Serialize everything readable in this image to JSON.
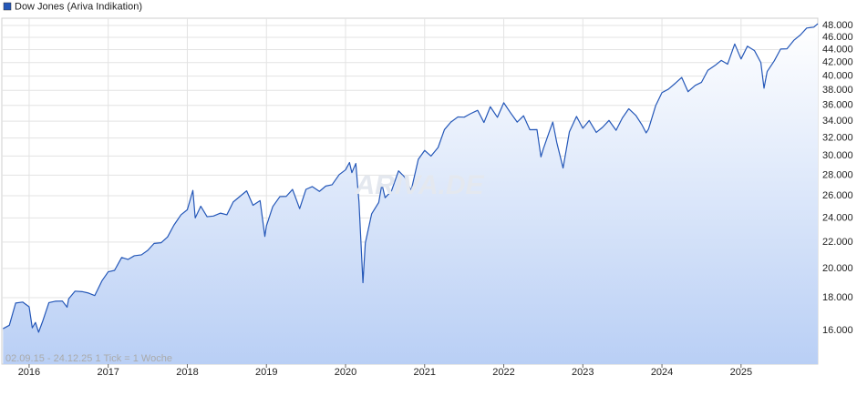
{
  "chart_data": {
    "type": "line",
    "legend_position": "top-left",
    "footer": "02.09.15 - 24.12.25   1 Tick = 1 Woche",
    "watermark": "ARIVA.DE",
    "log_scale": true,
    "grid": true,
    "x": [
      2015.67,
      2015.75,
      2015.83,
      2015.92,
      2016.0,
      2016.04,
      2016.08,
      2016.12,
      2016.17,
      2016.25,
      2016.33,
      2016.42,
      2016.48,
      2016.5,
      2016.58,
      2016.67,
      2016.75,
      2016.83,
      2016.92,
      2017.0,
      2017.08,
      2017.17,
      2017.25,
      2017.33,
      2017.42,
      2017.5,
      2017.58,
      2017.67,
      2017.75,
      2017.83,
      2017.92,
      2018.0,
      2018.07,
      2018.1,
      2018.17,
      2018.25,
      2018.33,
      2018.42,
      2018.5,
      2018.58,
      2018.67,
      2018.75,
      2018.83,
      2018.92,
      2018.98,
      2019.0,
      2019.08,
      2019.17,
      2019.25,
      2019.33,
      2019.42,
      2019.5,
      2019.58,
      2019.67,
      2019.75,
      2019.83,
      2019.92,
      2020.0,
      2020.05,
      2020.08,
      2020.13,
      2020.17,
      2020.22,
      2020.25,
      2020.33,
      2020.42,
      2020.46,
      2020.5,
      2020.58,
      2020.67,
      2020.75,
      2020.83,
      2020.92,
      2021.0,
      2021.08,
      2021.17,
      2021.25,
      2021.33,
      2021.42,
      2021.5,
      2021.58,
      2021.67,
      2021.75,
      2021.83,
      2021.92,
      2022.0,
      2022.08,
      2022.17,
      2022.25,
      2022.33,
      2022.42,
      2022.47,
      2022.5,
      2022.58,
      2022.62,
      2022.67,
      2022.75,
      2022.83,
      2022.92,
      2023.0,
      2023.08,
      2023.17,
      2023.25,
      2023.33,
      2023.42,
      2023.5,
      2023.58,
      2023.67,
      2023.75,
      2023.8,
      2023.83,
      2023.92,
      2024.0,
      2024.08,
      2024.17,
      2024.25,
      2024.33,
      2024.42,
      2024.5,
      2024.58,
      2024.67,
      2024.75,
      2024.83,
      2024.92,
      2025.0,
      2025.08,
      2025.17,
      2025.25,
      2025.29,
      2025.33,
      2025.42,
      2025.5,
      2025.58,
      2025.67,
      2025.75,
      2025.83,
      2025.92,
      2025.97
    ],
    "series": [
      {
        "name": "Dow Jones (Ariva Indikation)",
        "color": "#2457b8",
        "values": [
          16100,
          16300,
          17660,
          17720,
          17425,
          16150,
          16466,
          15900,
          16517,
          17685,
          17774,
          17787,
          17400,
          17930,
          18432,
          18401,
          18308,
          18142,
          19124,
          19763,
          19864,
          20812,
          20663,
          20940,
          21009,
          21350,
          21891,
          21948,
          22405,
          23377,
          24272,
          24719,
          26500,
          24000,
          25029,
          24103,
          24163,
          24416,
          24271,
          25415,
          25965,
          26458,
          25116,
          25538,
          22450,
          23327,
          24999,
          25916,
          25929,
          26593,
          24815,
          26600,
          26864,
          26403,
          26917,
          27046,
          28051,
          28538,
          29300,
          28256,
          29200,
          25409,
          19000,
          21917,
          24346,
          25383,
          27100,
          25813,
          26428,
          28430,
          27782,
          26502,
          29639,
          30606,
          29983,
          30932,
          32982,
          33875,
          34529,
          34503,
          34935,
          35361,
          33844,
          35820,
          34484,
          36338,
          35132,
          33893,
          34678,
          32977,
          32990,
          29900,
          30775,
          32845,
          33900,
          31510,
          28726,
          32733,
          34590,
          33147,
          34086,
          32657,
          33274,
          34098,
          32908,
          34408,
          35559,
          34721,
          33508,
          32600,
          33053,
          35951,
          37690,
          38150,
          38996,
          39807,
          37816,
          38686,
          39119,
          40842,
          41563,
          42330,
          41763,
          44910,
          42544,
          44545,
          43841,
          42001,
          38300,
          40669,
          42270,
          44095,
          44131,
          45545,
          46398,
          47563,
          47716,
          48300
        ]
      }
    ],
    "xlim": [
      2015.655,
      2025.97
    ],
    "xticks": [
      2016,
      2017,
      2018,
      2019,
      2020,
      2021,
      2022,
      2023,
      2024,
      2025
    ],
    "ylim": [
      14170,
      49280
    ],
    "yticks": [
      {
        "value": 16000,
        "label": "16.000"
      },
      {
        "value": 18000,
        "label": "18.000"
      },
      {
        "value": 20000,
        "label": "20.000"
      },
      {
        "value": 22000,
        "label": "22.000"
      },
      {
        "value": 24000,
        "label": "24.000"
      },
      {
        "value": 26000,
        "label": "26.000"
      },
      {
        "value": 28000,
        "label": "28.000"
      },
      {
        "value": 30000,
        "label": "30.000"
      },
      {
        "value": 32000,
        "label": "32.000"
      },
      {
        "value": 34000,
        "label": "34.000"
      },
      {
        "value": 36000,
        "label": "36.000"
      },
      {
        "value": 38000,
        "label": "38.000"
      },
      {
        "value": 40000,
        "label": "40.000"
      },
      {
        "value": 42000,
        "label": "42.000"
      },
      {
        "value": 44000,
        "label": "44.000"
      },
      {
        "value": 46000,
        "label": "46.000"
      },
      {
        "value": 48000,
        "label": "48.000"
      }
    ]
  }
}
